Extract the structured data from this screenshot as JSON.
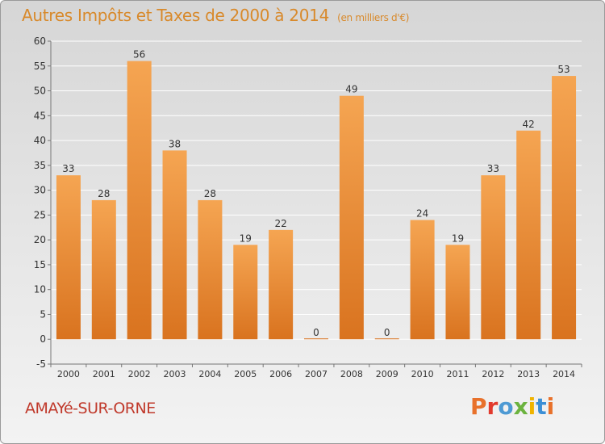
{
  "header": {
    "title": "Autres Impôts et Taxes de 2000 à 2014",
    "subtitle": "(en milliers d'€)"
  },
  "footer": {
    "commune": "AMAYé-SUR-ORNE",
    "logo_text": "Proxiti",
    "logo_colors": [
      "#e8712b",
      "#e23b2e",
      "#4e9ad4",
      "#6cb33f",
      "#f0b400",
      "#3b8fd6",
      "#e8712b"
    ]
  },
  "colors": {
    "title": "#d8892a",
    "commune": "#c0392b",
    "bar_light": "#f5a552",
    "bar_dark": "#d9731f",
    "grid": "#ffffff",
    "axis_text": "#333333"
  },
  "chart_data": {
    "type": "bar",
    "categories": [
      "2000",
      "2001",
      "2002",
      "2003",
      "2004",
      "2005",
      "2006",
      "2007",
      "2008",
      "2009",
      "2010",
      "2011",
      "2012",
      "2013",
      "2014"
    ],
    "values": [
      33,
      28,
      56,
      38,
      28,
      19,
      22,
      0,
      49,
      0,
      24,
      19,
      33,
      42,
      53
    ],
    "data_labels": [
      "33",
      "28",
      "56",
      "38",
      "28",
      "19",
      "22",
      "0",
      "49",
      "0",
      "24",
      "19",
      "33",
      "42",
      "53"
    ],
    "yticks": [
      "-5",
      "0",
      "5",
      "10",
      "15",
      "20",
      "25",
      "30",
      "35",
      "40",
      "45",
      "50",
      "55",
      "60"
    ],
    "ylim": [
      -5,
      60
    ],
    "grid": true,
    "legend": "none"
  }
}
